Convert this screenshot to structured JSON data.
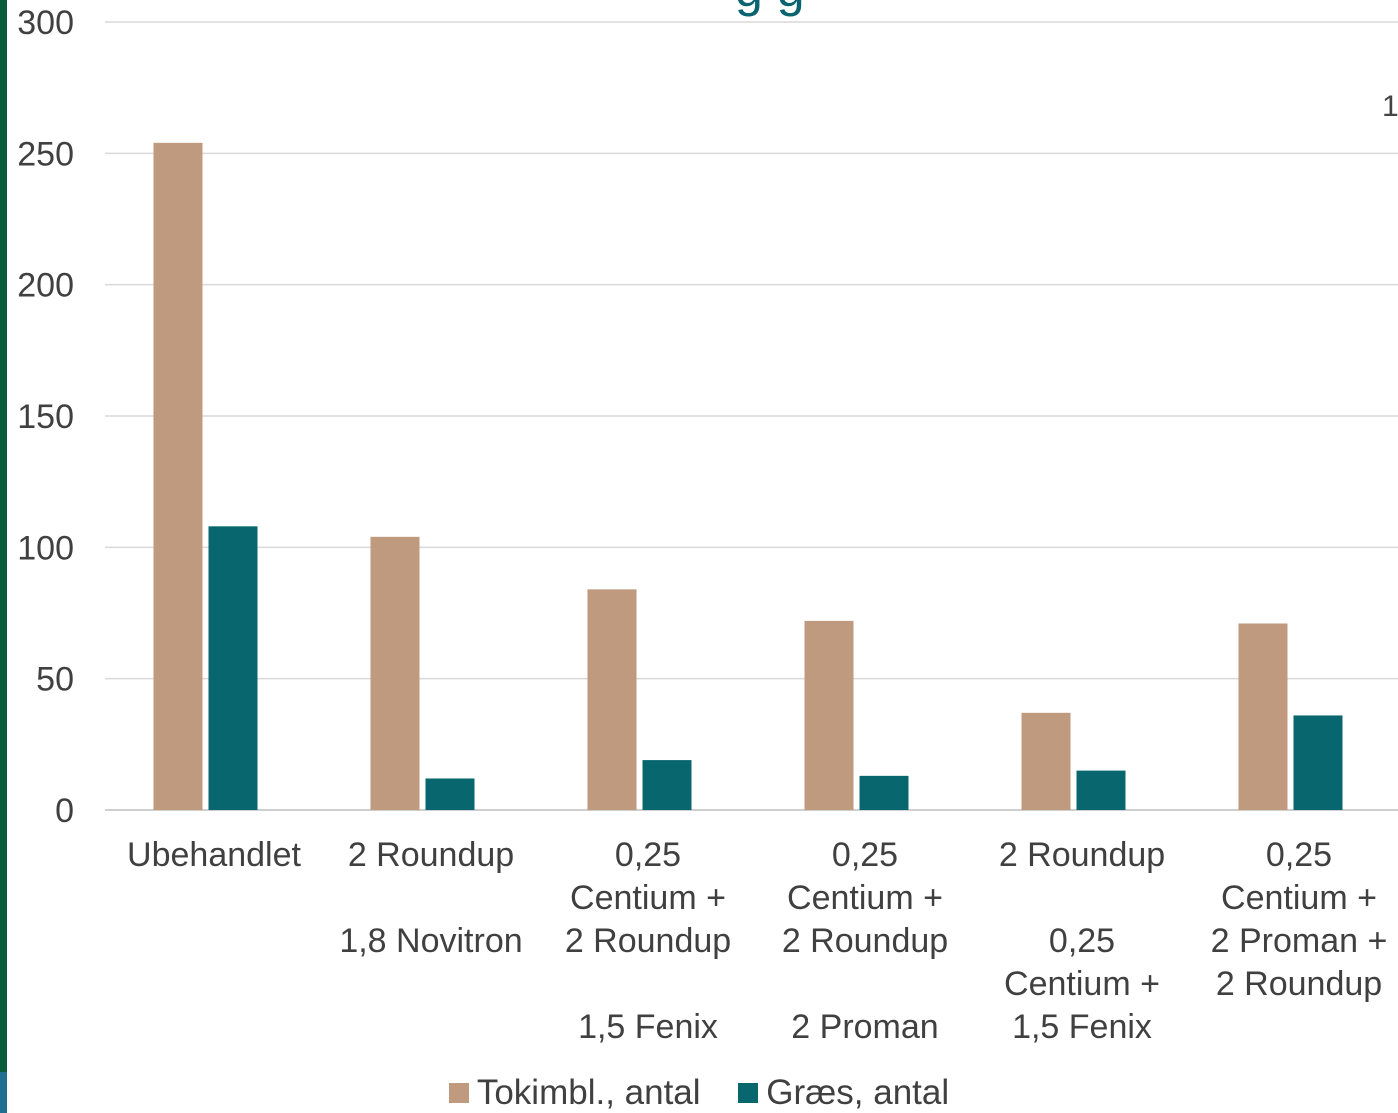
{
  "title_fragment": "g       g",
  "side_fragment": "1",
  "colors": {
    "series0": "#bf9a7e",
    "series1": "#08666f",
    "grid": "#d9d9d9",
    "axis": "#bfbfbf",
    "text": "#404040",
    "stripe": "#0b5b3a"
  },
  "chart_data": {
    "type": "bar",
    "categories": [
      [
        "Ubehandlet"
      ],
      [
        "2 Roundup",
        "",
        "1,8 Novitron"
      ],
      [
        "0,25",
        "Centium +",
        "2 Roundup",
        "",
        "1,5 Fenix"
      ],
      [
        "0,25",
        "Centium +",
        "2 Roundup",
        "",
        "2 Proman"
      ],
      [
        "2 Roundup",
        "",
        "0,25",
        "Centium +",
        "1,5 Fenix"
      ],
      [
        "0,25",
        "Centium +",
        "2 Proman +",
        "2 Roundup"
      ]
    ],
    "series": [
      {
        "name": "Tokimbl., antal",
        "values": [
          254,
          104,
          84,
          72,
          37,
          71
        ]
      },
      {
        "name": "Græs, antal",
        "values": [
          108,
          12,
          19,
          13,
          15,
          36
        ]
      }
    ],
    "yticks": [
      "0",
      "50",
      "100",
      "150",
      "200",
      "250",
      "300"
    ],
    "ylim": [
      0,
      300
    ],
    "grid": true,
    "legend": "bottom"
  }
}
